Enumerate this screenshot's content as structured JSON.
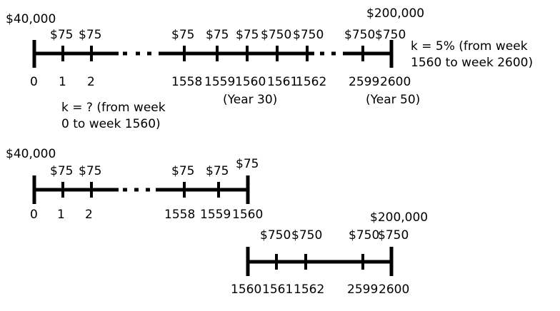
{
  "timeline1": {
    "pv": "$40,000",
    "fv": "$200,000",
    "ticks": [
      "0",
      "1",
      "2",
      "1558",
      "1559",
      "1560",
      "1561",
      "1562",
      "2599",
      "2600"
    ],
    "payments": [
      "$75",
      "$75",
      "$75",
      "$75",
      "$75",
      "$750",
      "$750",
      "$750",
      "$750"
    ],
    "year30": "(Year 30)",
    "year50": "(Year 50)",
    "note_k5_line1": "k = 5% (from week",
    "note_k5_line2": "1560 to week 2600)",
    "note_kq_line1": "k = ? (from week",
    "note_kq_line2": "0 to week 1560)"
  },
  "timeline2": {
    "pv": "$40,000",
    "ticks": [
      "0",
      "1",
      "2",
      "1558",
      "1559",
      "1560"
    ],
    "payments": [
      "$75",
      "$75",
      "$75",
      "$75",
      "$75"
    ]
  },
  "timeline3": {
    "fv": "$200,000",
    "ticks": [
      "1560",
      "1561",
      "1562",
      "2599",
      "2600"
    ],
    "payments": [
      "$750",
      "$750",
      "$750",
      "$750"
    ]
  }
}
